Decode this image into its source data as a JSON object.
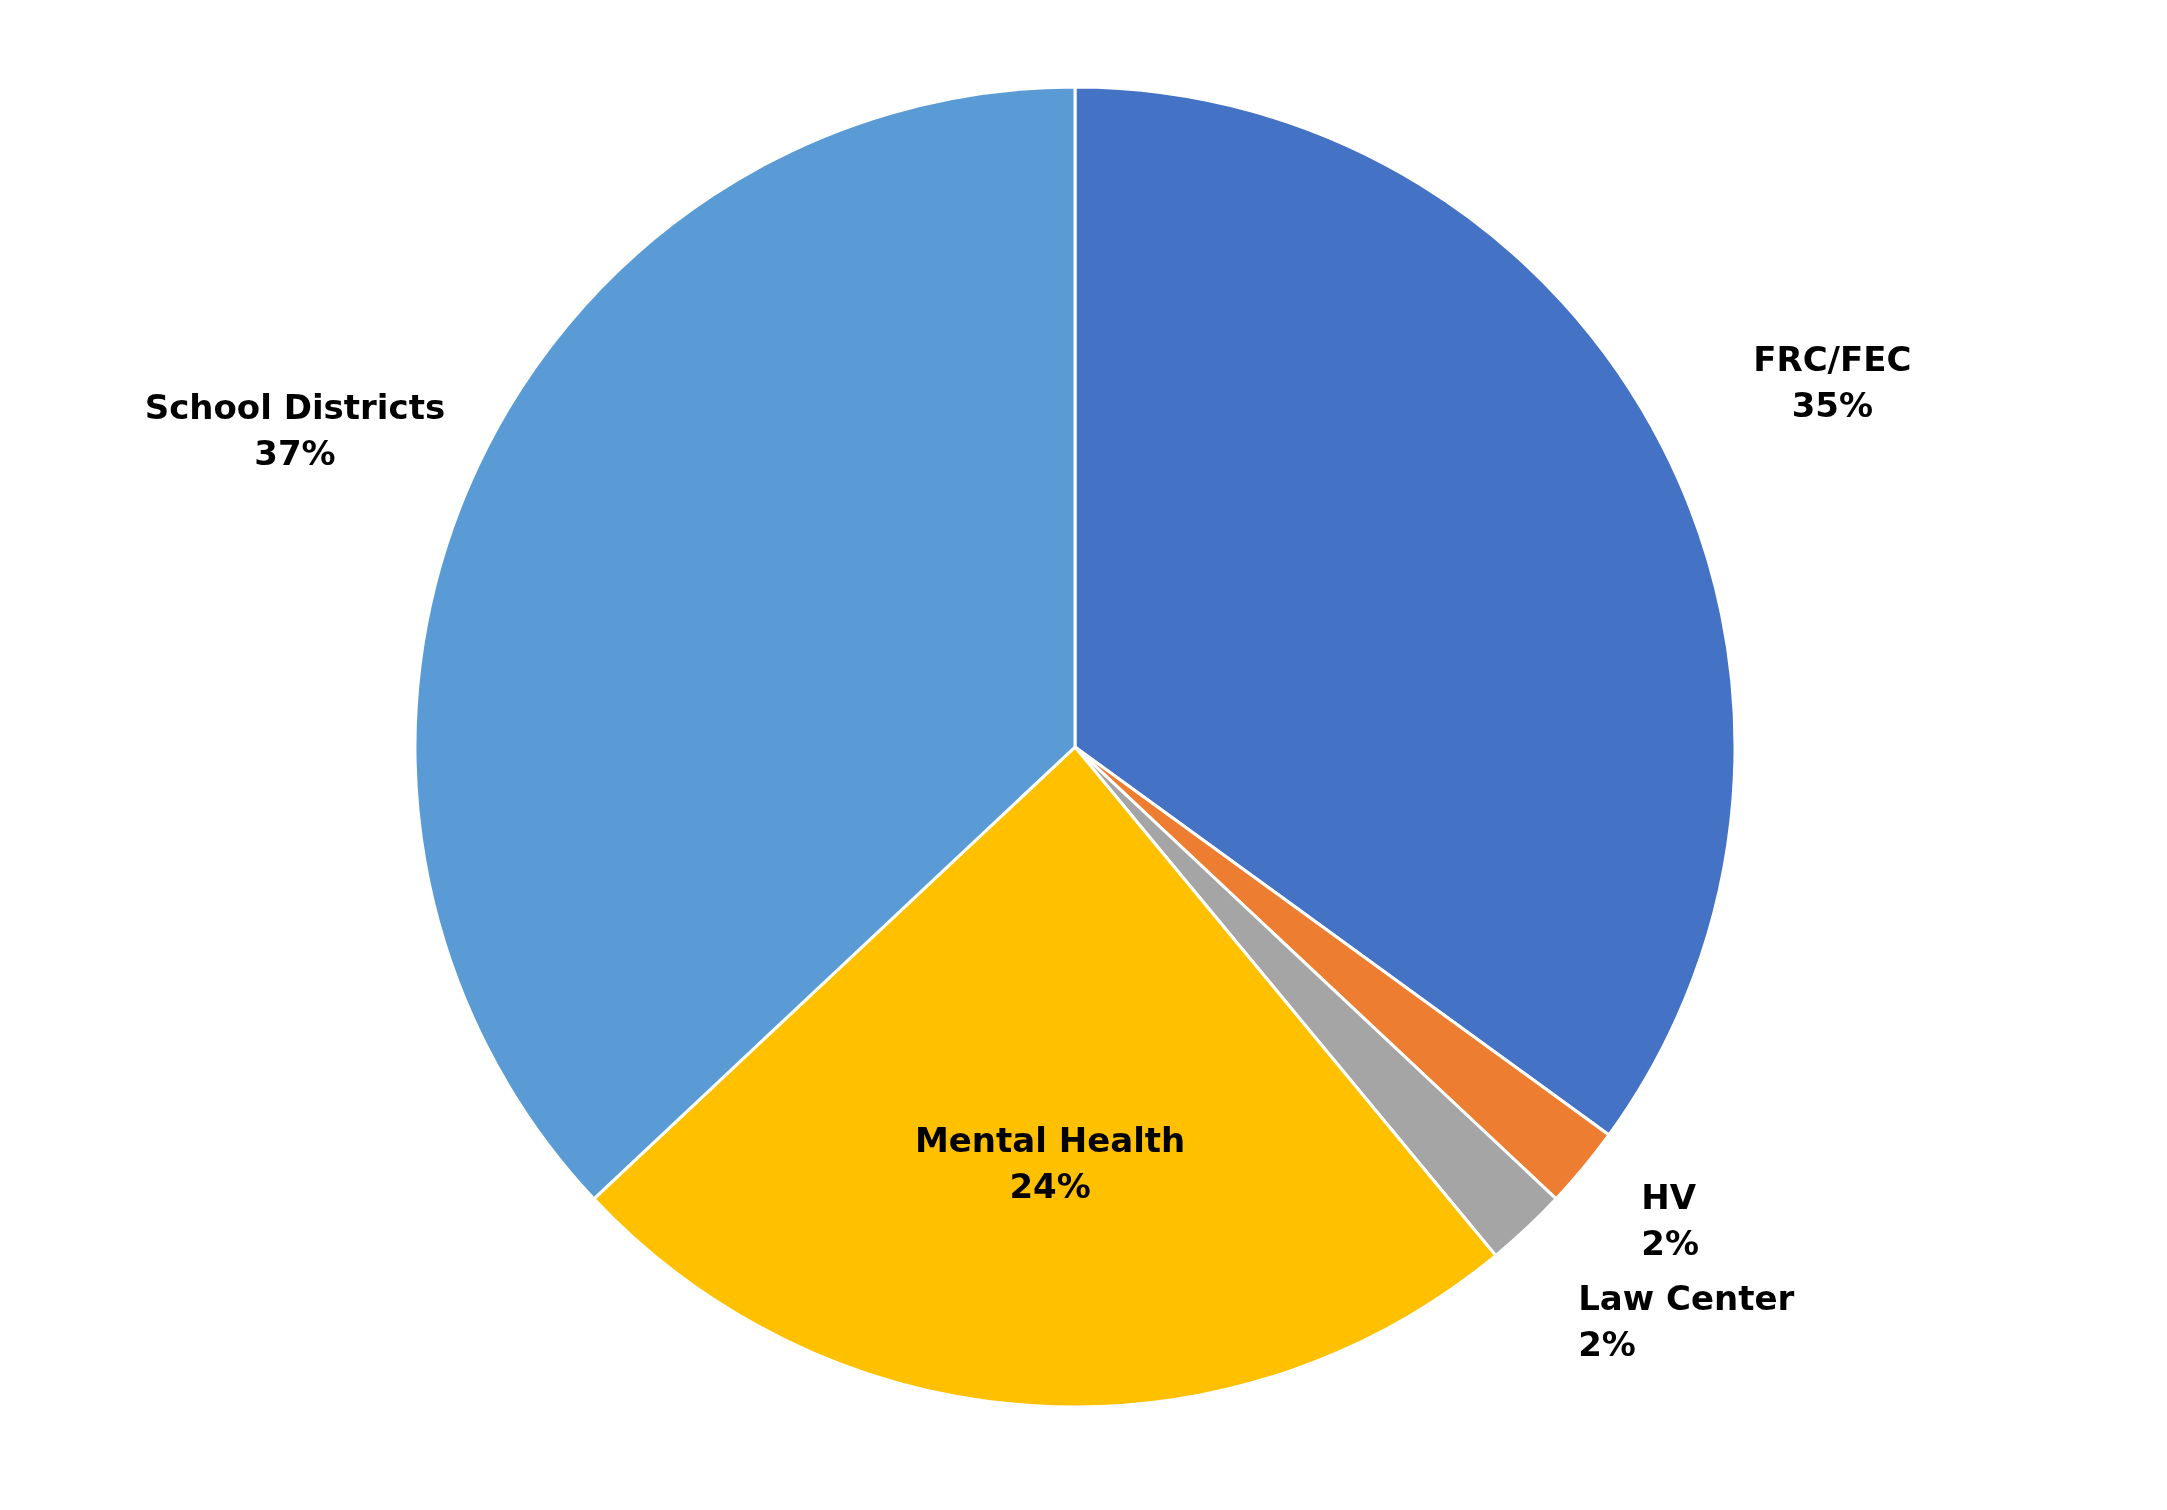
{
  "chart_data": {
    "type": "pie",
    "categories": [
      "FRC/FEC",
      "HV",
      "Law Center",
      "Mental Health",
      "School Districts"
    ],
    "values": [
      35,
      2,
      2,
      24,
      37
    ],
    "colors": [
      "#4472c4",
      "#ed7d31",
      "#a5a5a5",
      "#ffc000",
      "#5b9bd5"
    ],
    "value_labels": [
      "35%",
      "2%",
      "2%",
      "24%",
      "37%"
    ]
  }
}
